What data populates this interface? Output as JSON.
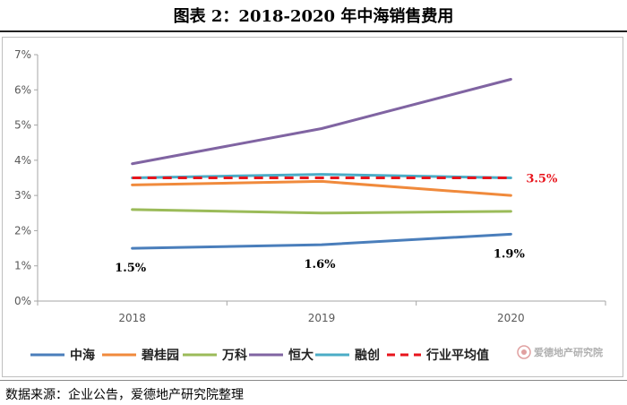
{
  "header": {
    "title": "图表 2：2018-2020 年中海销售费用"
  },
  "footer": {
    "source": "数据来源：企业公告，爱德地产研究院整理"
  },
  "watermark": {
    "text": "爱德地产研究院"
  },
  "chart_data": {
    "type": "line",
    "title": "图表 2：2018-2020 年中海销售费用",
    "x": [
      "2018",
      "2019",
      "2020"
    ],
    "ylim": [
      0,
      7
    ],
    "yticks": [
      "0%",
      "1%",
      "2%",
      "3%",
      "4%",
      "5%",
      "6%",
      "7%"
    ],
    "grid": false,
    "legend": "bottom",
    "series": [
      {
        "name": "中海",
        "values": [
          1.5,
          1.6,
          1.9
        ],
        "color": "#4a7ebb",
        "dashed": false,
        "labels": [
          "1.5%",
          "1.6%",
          "1.9%"
        ]
      },
      {
        "name": "碧桂园",
        "values": [
          3.3,
          3.4,
          3.0
        ],
        "color": "#f08a3c",
        "dashed": false
      },
      {
        "name": "万科",
        "values": [
          2.6,
          2.5,
          2.55
        ],
        "color": "#9bbb59",
        "dashed": false
      },
      {
        "name": "恒大",
        "values": [
          3.9,
          4.9,
          6.3
        ],
        "color": "#8064a2",
        "dashed": false
      },
      {
        "name": "融创",
        "values": [
          3.5,
          3.6,
          3.5
        ],
        "color": "#4bacc6",
        "dashed": false
      },
      {
        "name": "行业平均值",
        "values": [
          3.5,
          3.5,
          3.5
        ],
        "color": "#e8141c",
        "dashed": true,
        "end_label": "3.5%"
      }
    ]
  }
}
